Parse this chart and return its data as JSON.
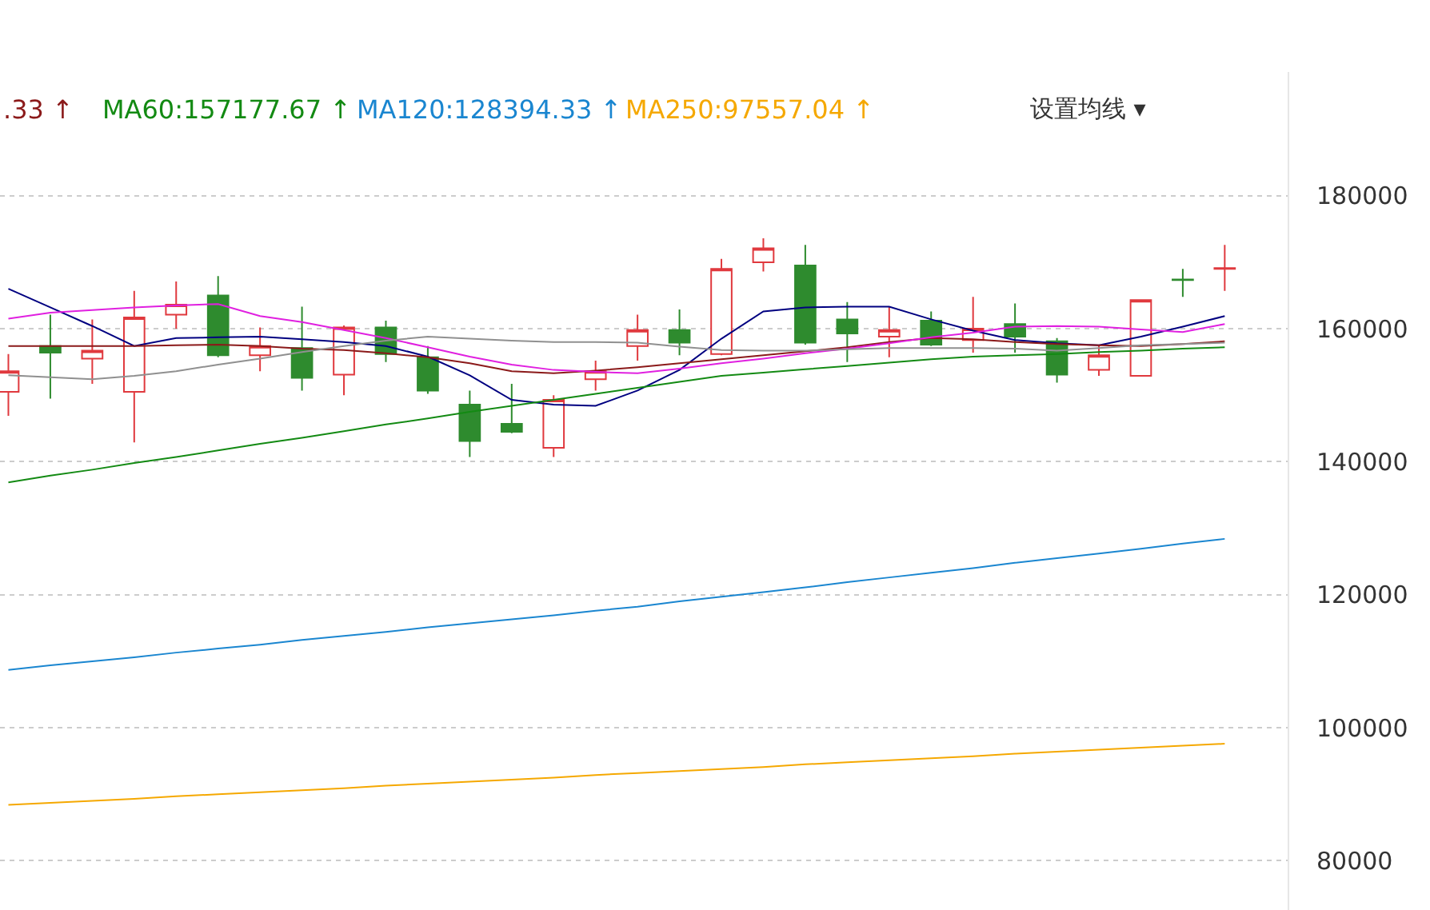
{
  "chart_data": {
    "type": "candlestick",
    "categories": [
      null,
      null,
      null,
      null,
      null,
      null,
      null,
      null,
      null,
      null,
      null,
      null,
      null,
      null,
      null,
      null,
      null,
      null,
      null,
      null,
      null,
      null,
      null,
      null,
      null,
      null,
      null,
      null,
      null,
      null
    ],
    "ohlc": [
      [
        150500,
        156200,
        146900,
        153600
      ],
      [
        157400,
        162100,
        149500,
        156400
      ],
      [
        155500,
        161400,
        151700,
        156700
      ],
      [
        150500,
        165700,
        142900,
        161700
      ],
      [
        162100,
        167100,
        160000,
        163600
      ],
      [
        165000,
        167900,
        155700,
        156000
      ],
      [
        156000,
        160200,
        153600,
        157400
      ],
      [
        157100,
        163300,
        150700,
        152600
      ],
      [
        153100,
        160500,
        150000,
        160200
      ],
      [
        160200,
        161200,
        155000,
        156200
      ],
      [
        155700,
        157400,
        150200,
        150700
      ],
      [
        148600,
        150700,
        140700,
        143100
      ],
      [
        145700,
        151700,
        144300,
        144500
      ],
      [
        142100,
        150000,
        140700,
        149300
      ],
      [
        152400,
        155200,
        150700,
        153600
      ],
      [
        157400,
        162100,
        155200,
        159800
      ],
      [
        159800,
        162900,
        156000,
        157900
      ],
      [
        156200,
        170500,
        156000,
        169000
      ],
      [
        170000,
        173600,
        168600,
        172100
      ],
      [
        169500,
        172600,
        157600,
        157900
      ],
      [
        161400,
        164000,
        155000,
        159300
      ],
      [
        158800,
        163300,
        155700,
        159800
      ],
      [
        161200,
        162600,
        157400,
        157600
      ],
      [
        158300,
        164800,
        156400,
        160000
      ],
      [
        160700,
        163800,
        156400,
        158800
      ],
      [
        158100,
        158600,
        151900,
        153100
      ],
      [
        153800,
        157600,
        152900,
        156000
      ],
      [
        152900,
        164300,
        152900,
        164300
      ],
      [
        167400,
        169000,
        164800,
        167300
      ],
      [
        169000,
        172600,
        165700,
        169100
      ]
    ],
    "colors": [
      "#e0393e",
      "#2e8b2e",
      "#e0393e",
      "#e0393e",
      "#e0393e",
      "#2e8b2e",
      "#e0393e",
      "#2e8b2e",
      "#e0393e",
      "#2e8b2e",
      "#2e8b2e",
      "#2e8b2e",
      "#2e8b2e",
      "#e0393e",
      "#e0393e",
      "#e0393e",
      "#2e8b2e",
      "#e0393e",
      "#e0393e",
      "#2e8b2e",
      "#2e8b2e",
      "#e0393e",
      "#2e8b2e",
      "#e0393e",
      "#2e8b2e",
      "#2e8b2e",
      "#e0393e",
      "#e0393e",
      "#2e8b2e",
      "#e0393e"
    ],
    "series": [
      {
        "type": "line",
        "color": "#000080",
        "values": [
          166000,
          163200,
          160400,
          157400,
          158600,
          158700,
          158800,
          158400,
          158000,
          157400,
          155800,
          153000,
          149300,
          148600,
          148400,
          150700,
          153800,
          158500,
          162600,
          163200,
          163300,
          163300,
          161400,
          159700,
          158300,
          157800,
          157500,
          158800,
          160300,
          161900
        ]
      },
      {
        "type": "line",
        "name": ".33 ↑",
        "color": "#8b1a1a",
        "values": [
          157400,
          157400,
          157400,
          157400,
          157500,
          157600,
          157400,
          157000,
          156800,
          156300,
          155700,
          154800,
          153600,
          153300,
          153700,
          154200,
          154800,
          155400,
          156000,
          156600,
          157200,
          158000,
          158600,
          158400,
          158000,
          157700,
          157500,
          157400,
          157700,
          158100
        ]
      },
      {
        "type": "line",
        "color": "#e020e0",
        "values": [
          161500,
          162400,
          162800,
          163200,
          163500,
          163700,
          161900,
          161000,
          159800,
          158600,
          157200,
          155800,
          154600,
          153800,
          153500,
          153300,
          154000,
          154800,
          155500,
          156300,
          157000,
          157800,
          158700,
          159400,
          160300,
          160400,
          160300,
          159900,
          159500,
          160700
        ]
      },
      {
        "type": "line",
        "color": "#909090",
        "values": [
          153000,
          152700,
          152400,
          152900,
          153600,
          154600,
          155500,
          156500,
          157400,
          158200,
          158800,
          158500,
          158200,
          158000,
          158000,
          157900,
          157300,
          156800,
          156700,
          156700,
          156900,
          157100,
          157100,
          157100,
          157000,
          156700,
          157100,
          157500,
          157700,
          157900
        ]
      },
      {
        "type": "line",
        "name": "MA60:157177.67 ↑",
        "color": "#138a13",
        "values": [
          136900,
          137900,
          138800,
          139800,
          140700,
          141700,
          142700,
          143600,
          144600,
          145600,
          146500,
          147500,
          148400,
          149300,
          150200,
          151100,
          152000,
          152900,
          153400,
          153900,
          154400,
          154900,
          155400,
          155800,
          156000,
          156200,
          156500,
          156700,
          157000,
          157200
        ]
      },
      {
        "type": "line",
        "name": "MA120:128394.33 ↑",
        "color": "#1a86d0",
        "values": [
          108700,
          109400,
          110000,
          110600,
          111300,
          111900,
          112500,
          113200,
          113800,
          114400,
          115100,
          115700,
          116300,
          116900,
          117600,
          118200,
          119000,
          119700,
          120400,
          121100,
          121900,
          122600,
          123300,
          124000,
          124800,
          125500,
          126200,
          126900,
          127700,
          128400
        ]
      },
      {
        "type": "line",
        "name": "MA250:97557.04 ↑",
        "color": "#f5a800",
        "values": [
          88400,
          88700,
          89000,
          89300,
          89700,
          90000,
          90300,
          90600,
          90900,
          91300,
          91600,
          91900,
          92200,
          92500,
          92900,
          93200,
          93500,
          93800,
          94100,
          94500,
          94800,
          95100,
          95400,
          95700,
          96100,
          96400,
          96700,
          97000,
          97300,
          97600
        ]
      }
    ],
    "annotations": [
      "设置均线 ▾"
    ],
    "ylim": [
      72600,
      198600
    ],
    "yticks": [
      80000,
      100000,
      120000,
      140000,
      160000,
      180000
    ],
    "grid": "y",
    "tick_labels": "y"
  }
}
